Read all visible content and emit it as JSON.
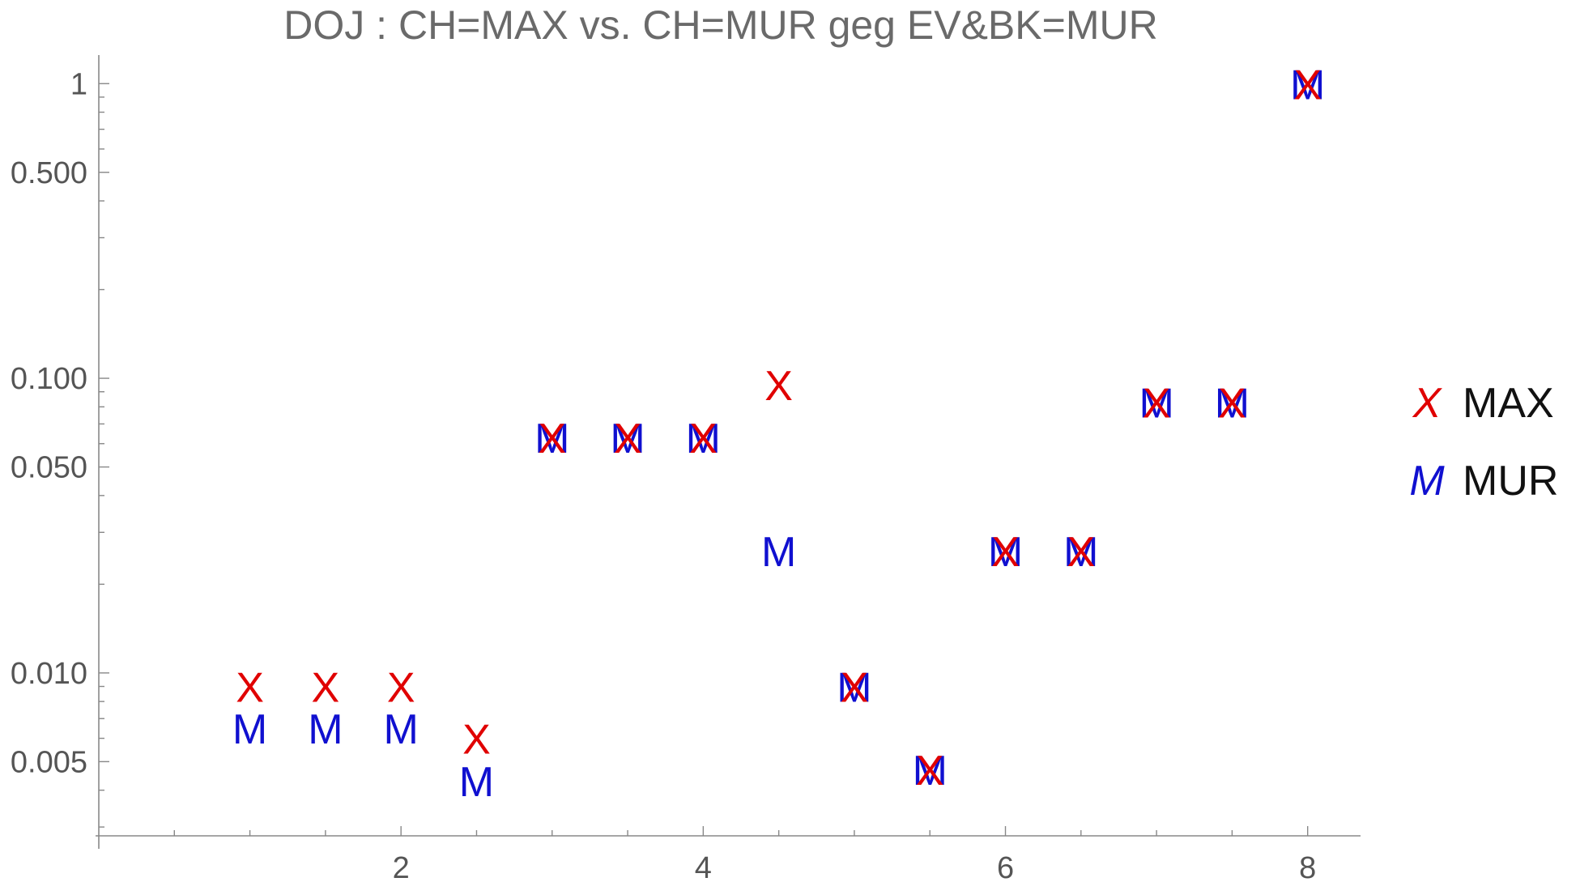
{
  "chart_data": {
    "type": "scatter",
    "title": "DOJ : CH=MAX vs. CH=MUR geg EV&BK=MUR",
    "xlabel": "",
    "ylabel": "",
    "x_scale": "linear",
    "y_scale": "log",
    "xlim": [
      0,
      8.35
    ],
    "ylim": [
      0.0028,
      1.25
    ],
    "x_ticks": [
      {
        "value": 2,
        "label": "2"
      },
      {
        "value": 4,
        "label": "4"
      },
      {
        "value": 6,
        "label": "6"
      },
      {
        "value": 8,
        "label": "8"
      }
    ],
    "y_ticks": [
      {
        "value": 1,
        "label": "1"
      },
      {
        "value": 0.5,
        "label": "0.500"
      },
      {
        "value": 0.1,
        "label": "0.100"
      },
      {
        "value": 0.05,
        "label": "0.050"
      },
      {
        "value": 0.01,
        "label": "0.010"
      },
      {
        "value": 0.005,
        "label": "0.005"
      }
    ],
    "legend": "right",
    "series": [
      {
        "name": "MAX",
        "marker": "X",
        "color": "#e00000",
        "x": [
          1,
          1.5,
          2,
          2.5,
          3,
          3.5,
          4,
          4.5,
          5,
          5.5,
          6,
          6.5,
          7,
          7.5,
          8
        ],
        "y": [
          0.009,
          0.009,
          0.009,
          0.006,
          0.063,
          0.063,
          0.063,
          0.095,
          0.009,
          0.0047,
          0.026,
          0.026,
          0.083,
          0.083,
          1.0
        ]
      },
      {
        "name": "MUR",
        "marker": "M",
        "color": "#1010d0",
        "x": [
          1,
          1.5,
          2,
          2.5,
          3,
          3.5,
          4,
          4.5,
          5,
          5.5,
          6,
          6.5,
          7,
          7.5,
          8
        ],
        "y": [
          0.0065,
          0.0065,
          0.0065,
          0.0043,
          0.063,
          0.063,
          0.063,
          0.026,
          0.009,
          0.0047,
          0.026,
          0.026,
          0.083,
          0.083,
          1.0
        ]
      }
    ]
  }
}
